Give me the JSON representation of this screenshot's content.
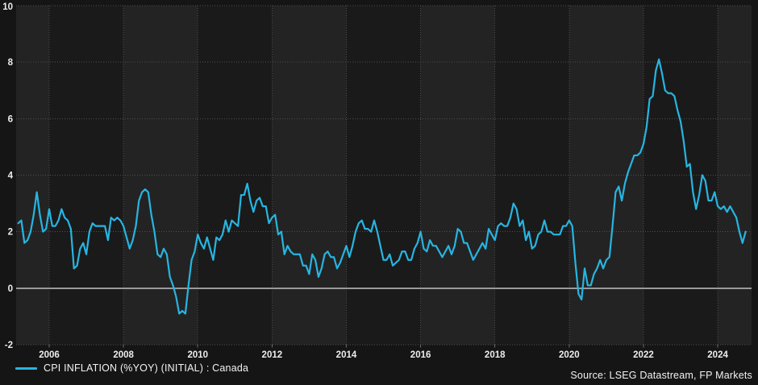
{
  "chart_data": {
    "type": "line",
    "title": "",
    "xlabel": "",
    "ylabel": "",
    "x_ticks": [
      2006,
      2008,
      2010,
      2012,
      2014,
      2016,
      2018,
      2020,
      2022,
      2024
    ],
    "y_ticks": [
      -2,
      0,
      2,
      4,
      6,
      8,
      10
    ],
    "xlim": [
      2005.11,
      2024.91
    ],
    "ylim": [
      -2,
      10
    ],
    "grid": "dotted",
    "zero_line": true,
    "legend_position": "bottom-left",
    "series": [
      {
        "name": "CPI INFLATION (%YOY) (INITIAL) : Canada",
        "color": "#27b5e1",
        "frequency": "monthly",
        "start_month": "2005-03",
        "end_month": "2024-10",
        "values": [
          2.3,
          2.4,
          1.6,
          1.7,
          2.0,
          2.6,
          3.4,
          2.6,
          2.0,
          2.1,
          2.8,
          2.2,
          2.2,
          2.4,
          2.8,
          2.5,
          2.4,
          2.1,
          0.7,
          0.8,
          1.4,
          1.6,
          1.2,
          2.0,
          2.3,
          2.2,
          2.2,
          2.2,
          2.2,
          1.7,
          2.5,
          2.4,
          2.5,
          2.4,
          2.2,
          1.8,
          1.4,
          1.7,
          2.2,
          3.1,
          3.4,
          3.5,
          3.4,
          2.6,
          2.0,
          1.2,
          1.1,
          1.4,
          1.2,
          0.4,
          0.1,
          -0.3,
          -0.9,
          -0.8,
          -0.9,
          0.1,
          1.0,
          1.3,
          1.9,
          1.6,
          1.4,
          1.8,
          1.4,
          1.0,
          1.8,
          1.7,
          1.9,
          2.4,
          2.0,
          2.4,
          2.3,
          2.2,
          3.3,
          3.3,
          3.7,
          3.1,
          2.7,
          3.1,
          3.2,
          2.9,
          2.9,
          2.3,
          2.5,
          2.6,
          1.9,
          2.0,
          1.2,
          1.5,
          1.3,
          1.2,
          1.2,
          1.2,
          0.8,
          0.8,
          0.5,
          1.2,
          1.0,
          0.4,
          0.7,
          1.2,
          1.3,
          1.1,
          1.1,
          0.7,
          0.9,
          1.2,
          1.5,
          1.1,
          1.5,
          2.0,
          2.3,
          2.4,
          2.1,
          2.1,
          2.0,
          2.4,
          2.0,
          1.5,
          1.0,
          1.0,
          1.2,
          0.8,
          0.9,
          1.0,
          1.3,
          1.3,
          1.0,
          1.0,
          1.4,
          1.6,
          2.0,
          1.4,
          1.3,
          1.7,
          1.5,
          1.5,
          1.3,
          1.1,
          1.3,
          1.5,
          1.2,
          1.5,
          2.1,
          2.0,
          1.6,
          1.6,
          1.3,
          1.0,
          1.2,
          1.4,
          1.6,
          1.4,
          2.1,
          1.9,
          1.7,
          2.2,
          2.3,
          2.2,
          2.2,
          2.5,
          3.0,
          2.8,
          2.2,
          2.4,
          1.7,
          2.0,
          1.4,
          1.5,
          1.9,
          2.0,
          2.4,
          2.0,
          2.0,
          1.9,
          1.9,
          1.9,
          2.2,
          2.2,
          2.4,
          2.2,
          0.9,
          -0.2,
          -0.4,
          0.7,
          0.1,
          0.1,
          0.5,
          0.7,
          1.0,
          0.7,
          1.0,
          1.1,
          2.2,
          3.4,
          3.6,
          3.1,
          3.7,
          4.1,
          4.4,
          4.7,
          4.7,
          4.8,
          5.1,
          5.7,
          6.7,
          6.8,
          7.7,
          8.1,
          7.6,
          7.0,
          6.9,
          6.9,
          6.8,
          6.3,
          5.9,
          5.2,
          4.3,
          4.4,
          3.4,
          2.8,
          3.3,
          4.0,
          3.8,
          3.1,
          3.1,
          3.4,
          2.9,
          2.8,
          2.9,
          2.7,
          2.9,
          2.7,
          2.5,
          2.0,
          1.6,
          2.0
        ]
      }
    ]
  },
  "legend": {
    "label": "CPI INFLATION (%YOY) (INITIAL) : Canada"
  },
  "footer": {
    "source": "Source: LSEG Datastream, FP Markets"
  },
  "colors": {
    "background": "#151515",
    "band_light": "#232323",
    "band_dark": "#1a1a1a",
    "grid": "#4e4e4e",
    "zero_line": "#9a9a9a",
    "tick_text": "#ededed",
    "line": "#27b5e1",
    "label_text": "#f2f2f2"
  }
}
